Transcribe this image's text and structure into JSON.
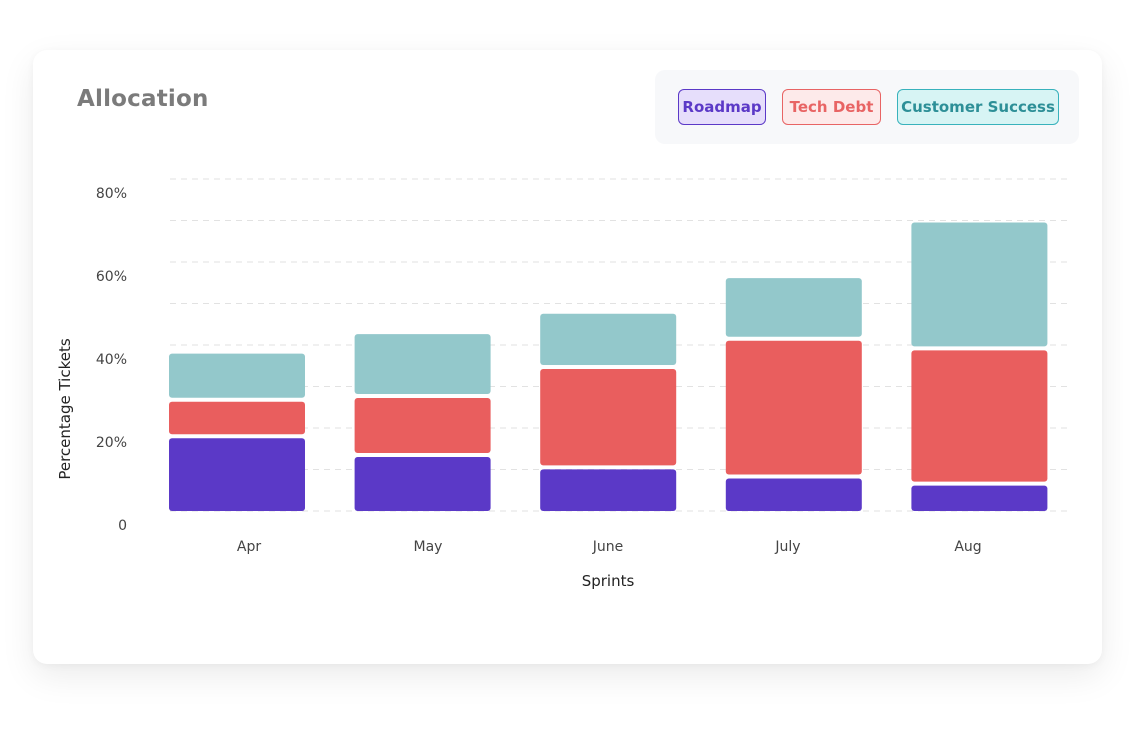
{
  "chart_data": {
    "type": "bar",
    "stacked": true,
    "title": "Allocation",
    "xlabel": "Sprints",
    "ylabel": "Percentage Tickets",
    "categories": [
      "Apr",
      "May",
      "June",
      "July",
      "Aug"
    ],
    "series": [
      {
        "name": "Roadmap",
        "color": "#5b39c7",
        "values": [
          18,
          13.5,
          10.5,
          8.3,
          6.6
        ]
      },
      {
        "name": "Tech Debt",
        "color": "#e95e5e",
        "values": [
          8.8,
          14.2,
          24.2,
          33.2,
          32.6
        ]
      },
      {
        "name": "Customer Success",
        "color": "#93c8cb",
        "values": [
          11.6,
          15.4,
          13.3,
          15.1,
          30.8
        ]
      }
    ],
    "yticks": [
      {
        "value": 0,
        "label": "0"
      },
      {
        "value": 20,
        "label": "20%"
      },
      {
        "value": 40,
        "label": "40%"
      },
      {
        "value": 60,
        "label": "60%"
      },
      {
        "value": 80,
        "label": "80%"
      }
    ],
    "ylim": [
      0,
      80
    ],
    "grid": true,
    "legend_position": "top-right"
  }
}
